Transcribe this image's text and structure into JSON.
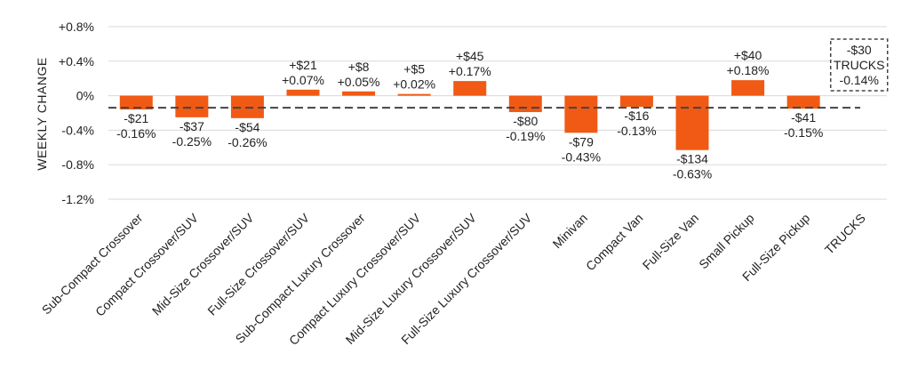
{
  "chart_data": {
    "type": "bar",
    "title": "",
    "xlabel": "",
    "ylabel": "WEEKLY CHANGE",
    "ylim": [
      -1.2,
      0.8
    ],
    "yticks": [
      0.8,
      0.4,
      0,
      -0.4,
      -0.8,
      -1.2
    ],
    "ytick_labels": [
      "+0.8%",
      "+0.4%",
      "0%",
      "-0.4%",
      "-0.8%",
      "-1.2%"
    ],
    "grid": true,
    "categories": [
      "Sub-Compact Crossover",
      "Compact Crossover/SUV",
      "Mid-Size Crossover/SUV",
      "Full-Size Crossover/SUV",
      "Sub-Compact Luxury Crossover",
      "Compact Luxury Crossover/SUV",
      "Mid-Size Luxury Crossover/SUV",
      "Full-Size Luxury Crossover/SUV",
      "Minivan",
      "Compact Van",
      "Full-Size Van",
      "Small Pickup",
      "Full-Size Pickup",
      "TRUCKS"
    ],
    "values": [
      -0.16,
      -0.25,
      -0.26,
      0.07,
      0.05,
      0.02,
      0.17,
      -0.19,
      -0.43,
      -0.13,
      -0.63,
      0.18,
      -0.15,
      null
    ],
    "dollar_labels": [
      "-$21",
      "-$37",
      "-$54",
      "+$21",
      "+$8",
      "+$5",
      "+$45",
      "-$80",
      "-$79",
      "-$16",
      "-$134",
      "+$40",
      "-$41",
      ""
    ],
    "pct_labels": [
      "-0.16%",
      "-0.25%",
      "-0.26%",
      "+0.07%",
      "+0.05%",
      "+0.02%",
      "+0.17%",
      "-0.19%",
      "-0.43%",
      "-0.13%",
      "-0.63%",
      "+0.18%",
      "-0.15%",
      ""
    ],
    "reference": {
      "value": -0.14,
      "dollar_label": "-$30",
      "name_label": "TRUCKS",
      "pct_label": "-0.14%"
    },
    "colors": {
      "bar": "#f05a14",
      "reference_line": "#444444",
      "grid": "#d9d9d9"
    }
  }
}
